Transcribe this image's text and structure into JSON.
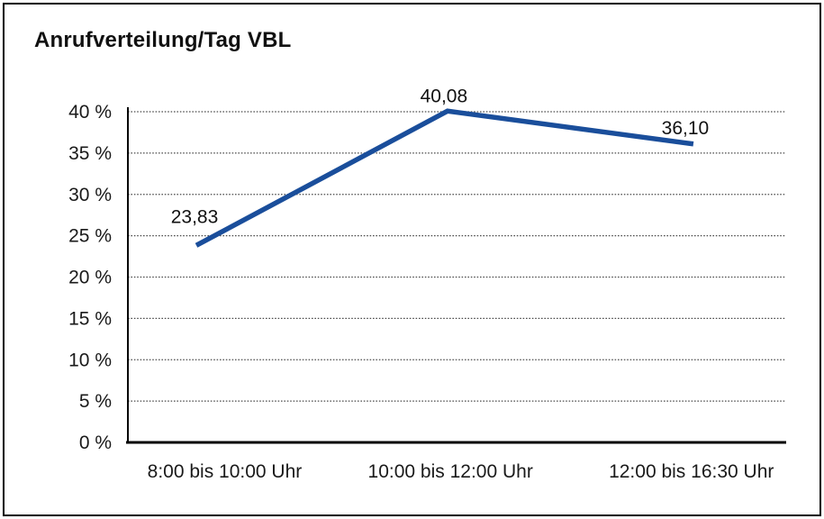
{
  "figure": {
    "background": "#ffffff",
    "border_color": "#000000"
  },
  "chart_data": {
    "type": "line",
    "title": "Anrufverteilung/Tag VBL",
    "categories": [
      "8:00 bis 10:00 Uhr",
      "10:00 bis 12:00 Uhr",
      "12:00 bis 16:30 Uhr"
    ],
    "values": [
      23.83,
      40.08,
      36.1
    ],
    "value_labels": [
      "23,83",
      "40,08",
      "36,10"
    ],
    "y_tick_values": [
      0,
      5,
      10,
      15,
      20,
      25,
      30,
      35,
      40
    ],
    "y_tick_labels": [
      "0 %",
      "5 %",
      "10 %",
      "15 %",
      "20 %",
      "25 %",
      "30 %",
      "35 %",
      "40 %"
    ],
    "ylim": [
      0,
      40
    ],
    "xlabel": "",
    "ylabel": "",
    "grid": "horizontal dotted",
    "legend": "none",
    "line_color": "#1a4e9b",
    "axis_color": "#000000",
    "gridline_color": "#4d4d4d",
    "text_color": "#1a1a1a"
  }
}
